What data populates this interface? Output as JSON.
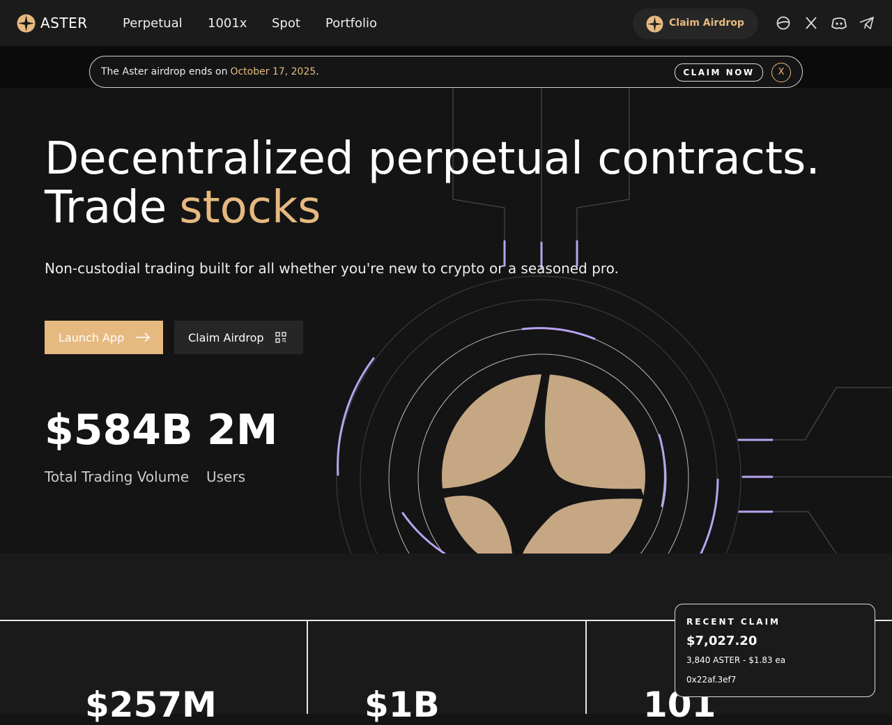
{
  "nav": {
    "logo": "ASTER",
    "links": [
      "Perpetual",
      "1001x",
      "Spot",
      "Portfolio"
    ],
    "claim_button": "Claim Airdrop"
  },
  "banner": {
    "text": "The Aster airdrop ends on",
    "date": "October 17, 2025",
    "end": ".",
    "cta": "CLAIM NOW",
    "close": "X"
  },
  "hero": {
    "headline_line1": "Decentralized perpetual contracts.",
    "headline_line2_plain": "Trade",
    "headline_line2_accent": "stocks",
    "subtitle": "Non-custodial trading built for all whether you're new to crypto or a seasoned pro.",
    "primary_button": "Launch App",
    "secondary_button": "Claim Airdrop",
    "stats": [
      {
        "value": "$584B",
        "label": "Total Trading Volume"
      },
      {
        "value": "2M",
        "label": "Users"
      }
    ]
  },
  "metrics": [
    "$257M",
    "$1B",
    "101"
  ],
  "recent_claim": {
    "title": "RECENT CLAIM",
    "amount": "$7,027.20",
    "detail": "3,840 ASTER - $1.83 ea",
    "address": "0x22af.3ef7"
  }
}
